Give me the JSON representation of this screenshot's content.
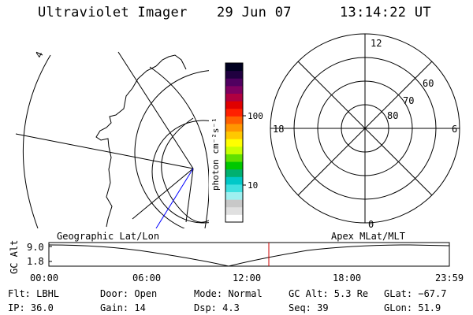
{
  "header": {
    "title": "Ultraviolet Imager",
    "date": "29 Jun 07",
    "time": "13:14:22 UT"
  },
  "colorbar": {
    "unit_label": "photon cm⁻²s⁻¹",
    "ticks": [
      "100",
      "10"
    ],
    "colors": [
      "#ffffff",
      "#e0e0e0",
      "#c8c8c8",
      "#9ff0f0",
      "#40e0e0",
      "#00c8c8",
      "#00b070",
      "#00c800",
      "#60e000",
      "#c8ff00",
      "#ffff00",
      "#ffc800",
      "#ff9600",
      "#ff6000",
      "#ff2000",
      "#e00000",
      "#b00040",
      "#800060",
      "#500060",
      "#200040",
      "#000020"
    ]
  },
  "polar_plot": {
    "clock_labels": [
      "12",
      "18",
      "6",
      "0"
    ],
    "lat_labels": [
      "60",
      "70",
      "80"
    ]
  },
  "geo_map": {
    "marker": "4"
  },
  "altitude_plot": {
    "ylabel": "GC Alt",
    "y_ticks": [
      "9.0",
      "1.8"
    ],
    "left_title": "Geographic Lat/Lon",
    "right_title": "Apex MLat/MLT",
    "x_ticks": [
      "00:00",
      "06:00",
      "12:00",
      "18:00",
      "23:59"
    ]
  },
  "status": {
    "flt": "Flt: LBHL",
    "ip": "IP: 36.0",
    "door": "Door: Open",
    "gain": "Gain: 14",
    "mode": "Mode: Normal",
    "dsp": "Dsp:    4.3",
    "gc_alt": "GC Alt: 5.3 Re",
    "seq": "Seq: 39",
    "glat": "GLat: −67.7",
    "glon": "GLon:  51.9"
  },
  "colors": {
    "foreground": "#000000",
    "cursor_line": "#cc0000",
    "track_line": "#0000ff",
    "background": "#ffffff"
  }
}
